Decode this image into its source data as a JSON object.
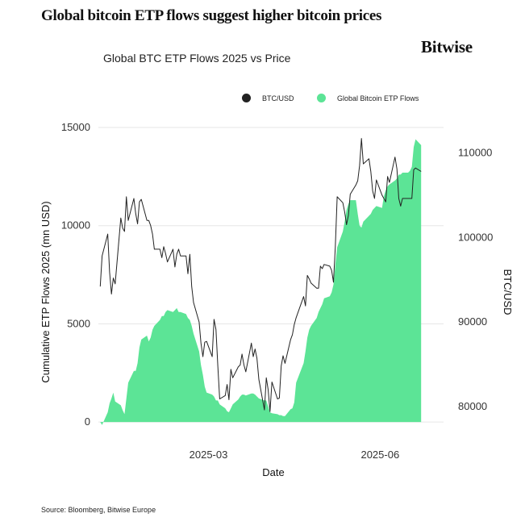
{
  "page": {
    "headline": "Global bitcoin ETP flows suggest higher bitcoin prices",
    "brand": "Bitwise",
    "source": "Source: Bloomberg, Bitwise Europe"
  },
  "colors": {
    "flows": "#5ce496",
    "price": "#222222",
    "grid": "#e6e6e6"
  },
  "chart_data": {
    "type": "area",
    "title": "Global BTC ETP Flows 2025 vs Price",
    "xlabel": "Date",
    "ylabel": "Cumulative ETP Flows 2025 (mn USD)",
    "y2label": "BTC/USD",
    "x_ticks": [
      "2025-03",
      "2025-06"
    ],
    "y_ticks": [
      0,
      5000,
      10000,
      15000
    ],
    "y2_ticks": [
      80000,
      90000,
      100000,
      110000
    ],
    "ylim": [
      -200,
      15000
    ],
    "y2lim": [
      77700,
      113000
    ],
    "grid": true,
    "legend_position": "top-right",
    "legend": [
      "BTC/USD",
      "Global Bitcoin ETP Flows"
    ],
    "x": [
      "2025-01-02",
      "2025-01-03",
      "2025-01-06",
      "2025-01-07",
      "2025-01-08",
      "2025-01-09",
      "2025-01-10",
      "2025-01-13",
      "2025-01-14",
      "2025-01-15",
      "2025-01-16",
      "2025-01-17",
      "2025-01-20",
      "2025-01-21",
      "2025-01-22",
      "2025-01-23",
      "2025-01-24",
      "2025-01-27",
      "2025-01-28",
      "2025-01-29",
      "2025-01-30",
      "2025-01-31",
      "2025-02-03",
      "2025-02-04",
      "2025-02-05",
      "2025-02-06",
      "2025-02-07",
      "2025-02-10",
      "2025-02-11",
      "2025-02-12",
      "2025-02-13",
      "2025-02-14",
      "2025-02-17",
      "2025-02-18",
      "2025-02-19",
      "2025-02-20",
      "2025-02-21",
      "2025-02-24",
      "2025-02-25",
      "2025-02-26",
      "2025-02-27",
      "2025-02-28",
      "2025-03-03",
      "2025-03-04",
      "2025-03-05",
      "2025-03-06",
      "2025-03-07",
      "2025-03-10",
      "2025-03-11",
      "2025-03-12",
      "2025-03-13",
      "2025-03-14",
      "2025-03-17",
      "2025-03-18",
      "2025-03-19",
      "2025-03-20",
      "2025-03-21",
      "2025-03-24",
      "2025-03-25",
      "2025-03-26",
      "2025-03-27",
      "2025-03-28",
      "2025-03-31",
      "2025-04-01",
      "2025-04-02",
      "2025-04-03",
      "2025-04-04",
      "2025-04-07",
      "2025-04-08",
      "2025-04-09",
      "2025-04-10",
      "2025-04-11",
      "2025-04-14",
      "2025-04-15",
      "2025-04-16",
      "2025-04-17",
      "2025-04-21",
      "2025-04-22",
      "2025-04-23",
      "2025-04-24",
      "2025-04-25",
      "2025-04-28",
      "2025-04-29",
      "2025-04-30",
      "2025-05-01",
      "2025-05-02",
      "2025-05-05",
      "2025-05-06",
      "2025-05-07",
      "2025-05-08",
      "2025-05-09",
      "2025-05-12",
      "2025-05-13",
      "2025-05-14",
      "2025-05-15",
      "2025-05-16",
      "2025-05-19",
      "2025-05-20",
      "2025-05-21",
      "2025-05-22",
      "2025-05-23",
      "2025-05-26",
      "2025-05-27",
      "2025-05-28",
      "2025-05-29",
      "2025-05-30",
      "2025-06-02",
      "2025-06-03",
      "2025-06-04",
      "2025-06-05",
      "2025-06-06",
      "2025-06-09",
      "2025-06-10",
      "2025-06-11",
      "2025-06-12",
      "2025-06-13",
      "2025-06-16",
      "2025-06-17",
      "2025-06-18",
      "2025-06-19",
      "2025-06-20",
      "2025-06-23"
    ],
    "series": [
      {
        "name": "Global Bitcoin ETP Flows",
        "axis": "left",
        "values": [
          0,
          -150,
          500,
          950,
          1200,
          1500,
          1050,
          850,
          600,
          400,
          1200,
          2000,
          2600,
          2600,
          3000,
          3800,
          4200,
          4400,
          4100,
          4300,
          4700,
          4900,
          5200,
          5400,
          5400,
          5600,
          5700,
          5600,
          5700,
          5800,
          5600,
          5600,
          5500,
          5300,
          5200,
          4900,
          4500,
          3600,
          2900,
          2400,
          1800,
          1500,
          1400,
          1300,
          1100,
          1100,
          900,
          700,
          550,
          500,
          700,
          900,
          1150,
          1300,
          1400,
          1400,
          1350,
          1450,
          1450,
          1400,
          1300,
          1200,
          1100,
          1100,
          800,
          500,
          450,
          400,
          350,
          350,
          300,
          300,
          650,
          700,
          1000,
          2000,
          3000,
          3600,
          4300,
          4700,
          4900,
          5300,
          5600,
          5800,
          6000,
          6300,
          6400,
          6600,
          7000,
          8000,
          8900,
          9700,
          10200,
          10800,
          11100,
          11300,
          11300,
          10600,
          10000,
          9900,
          10200,
          10500,
          10600,
          10800,
          10900,
          11000,
          10900,
          11500,
          11800,
          12000,
          12100,
          12300,
          12400,
          12600,
          12600,
          12700,
          12700,
          12800,
          13000,
          14000,
          14400,
          14100
        ]
      },
      {
        "name": "BTC/USD",
        "axis": "right",
        "values": [
          94200,
          97800,
          100400,
          95900,
          93300,
          95200,
          94500,
          102300,
          101100,
          100700,
          104800,
          102000,
          104600,
          102800,
          101600,
          104200,
          104500,
          102000,
          102000,
          101400,
          100400,
          98600,
          98600,
          97600,
          98900,
          98100,
          97100,
          98600,
          96500,
          98000,
          98600,
          97800,
          97800,
          95700,
          98000,
          94200,
          92300,
          90000,
          87500,
          85900,
          87600,
          87700,
          85900,
          90300,
          89100,
          84800,
          80900,
          81300,
          82600,
          80800,
          84400,
          83400,
          84700,
          84900,
          86200,
          84900,
          84100,
          87500,
          85900,
          86800,
          85700,
          83200,
          79600,
          83400,
          82000,
          79400,
          82900,
          80900,
          81000,
          84800,
          86000,
          85100,
          87900,
          88500,
          89700,
          90500,
          93000,
          91900,
          95500,
          95100,
          94600,
          94000,
          94000,
          96600,
          96300,
          96800,
          96600,
          96100,
          94700,
          98900,
          104800,
          104100,
          103000,
          101500,
          102600,
          105100,
          106200,
          106700,
          108500,
          111700,
          108700,
          109300,
          107800,
          105500,
          104600,
          106800,
          105000,
          104600,
          104200,
          107200,
          106500,
          109500,
          108100,
          104600,
          103700,
          104600,
          104600,
          104600,
          104600,
          108000,
          108200,
          107800
        ]
      }
    ]
  }
}
